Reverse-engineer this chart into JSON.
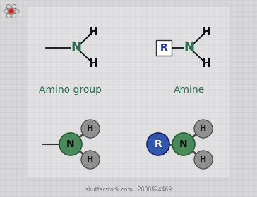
{
  "bg_color": "#d8d8d8",
  "grid_color": "#bbbbcc",
  "dark_green": "#2d6e4e",
  "node_green": "#4a8a5a",
  "node_gray": "#999999",
  "node_blue": "#3355aa",
  "text_black": "#111111",
  "label_green": "#2d6e4e",
  "watermark": "shutterstock.com · 2000824469",
  "amino_label": "Amino group",
  "amine_label": "Amine"
}
